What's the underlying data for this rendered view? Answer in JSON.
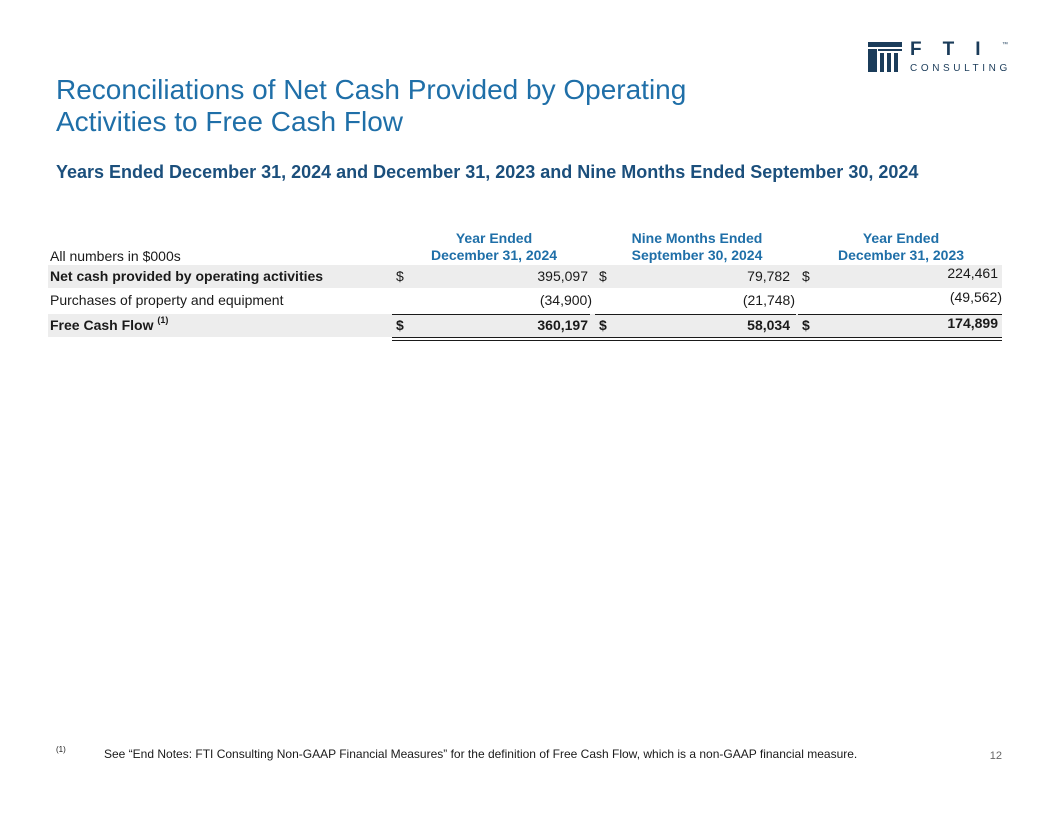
{
  "header": {
    "title_line1": "Reconciliations of Net Cash Provided by Operating",
    "title_line2": "Activities to Free Cash Flow",
    "subtitle": "Years Ended December 31, 2024 and December 31, 2023 and Nine Months Ended September 30, 2024",
    "logo": {
      "wordmark": "FTI",
      "tagline": "CONSULTING",
      "tm": "™"
    }
  },
  "table": {
    "units_label": "All numbers in $000s",
    "columns": [
      {
        "line1": "Year Ended",
        "line2": "December 31, 2024"
      },
      {
        "line1": "Nine Months Ended",
        "line2": "September 30, 2024"
      },
      {
        "line1": "Year Ended",
        "line2": "December 31, 2023"
      }
    ],
    "rows": [
      {
        "label": "Net cash provided by operating activities",
        "currency": "$",
        "values": [
          "395,097",
          "79,782",
          "224,461"
        ]
      },
      {
        "label": "Purchases of property and equipment",
        "currency": "",
        "values": [
          "(34,900)",
          "(21,748)",
          "(49,562)"
        ]
      },
      {
        "label": "Free Cash Flow",
        "footnote_ref": "(1)",
        "currency": "$",
        "values": [
          "360,197",
          "58,034",
          "174,899"
        ]
      }
    ]
  },
  "footer": {
    "footnote_mark": "(1)",
    "footnote_text": "See “End Notes: FTI Consulting Non-GAAP Financial Measures” for the definition of Free Cash Flow, which is a non-GAAP financial measure.",
    "page_number": "12"
  },
  "colors": {
    "title": "#1f6fa8",
    "subtitle": "#1b4f7c",
    "shade": "#ededed",
    "logo": "#1b3c5a"
  }
}
